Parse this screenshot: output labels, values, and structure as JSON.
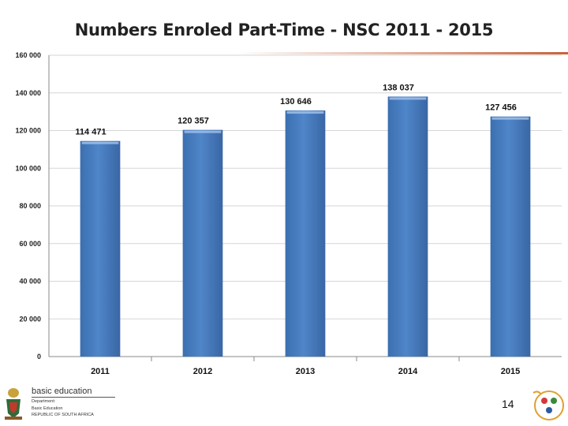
{
  "title": "Numbers Enroled Part-Time - NSC 2011 - 2015",
  "chart_data": {
    "type": "bar",
    "title": "Numbers Enroled Part-Time - NSC 2011 - 2015",
    "categories": [
      "2011",
      "2012",
      "2013",
      "2014",
      "2015"
    ],
    "values": [
      114471,
      120357,
      130646,
      138037,
      127456
    ],
    "value_labels": [
      "114 471",
      "120 357",
      "130 646",
      "138 037",
      "127 456"
    ],
    "ylim": [
      0,
      160000
    ],
    "yticks": [
      0,
      20000,
      40000,
      60000,
      80000,
      100000,
      120000,
      140000,
      160000
    ],
    "ytick_labels": [
      "0",
      "20 000",
      "40 000",
      "60 000",
      "80 000",
      "100 000",
      "120 000",
      "140 000",
      "160 000"
    ],
    "xlabel": "",
    "ylabel": "",
    "grid": true,
    "bar_color": "#4f86c9"
  },
  "footer": {
    "department": "basic education",
    "sub_lines": [
      "Department:",
      "Basic Education",
      "REPUBLIC OF SOUTH AFRICA"
    ],
    "page_number": "14"
  }
}
